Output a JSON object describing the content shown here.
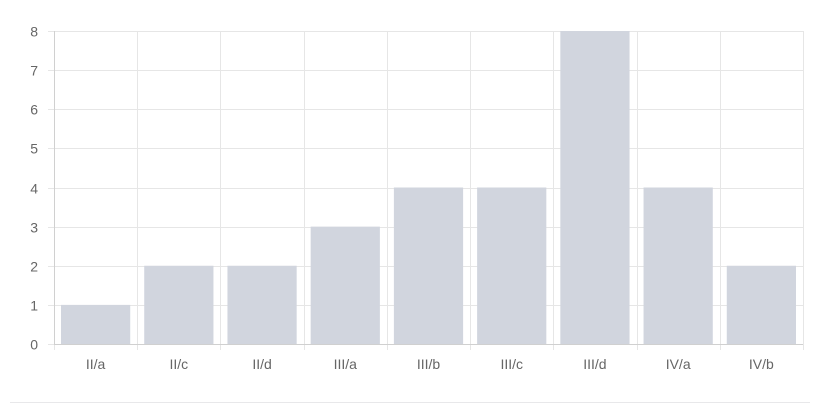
{
  "chart_data": {
    "type": "bar",
    "title": "",
    "xlabel": "",
    "ylabel": "",
    "categories": [
      "II/a",
      "II/c",
      "II/d",
      "III/a",
      "III/b",
      "III/c",
      "III/d",
      "IV/a",
      "IV/b"
    ],
    "values": [
      1,
      2,
      2,
      3,
      4,
      4,
      8,
      4,
      2
    ],
    "ylim": [
      0,
      8
    ],
    "yticks": [
      "0",
      "1",
      "2",
      "3",
      "4",
      "5",
      "6",
      "7",
      "8"
    ],
    "grid": true,
    "legend": "none",
    "colors": {
      "bar": "#d1d5de",
      "grid": "#e6e6e6",
      "axis": "#d0d0d0",
      "tick_text": "#666666"
    }
  }
}
